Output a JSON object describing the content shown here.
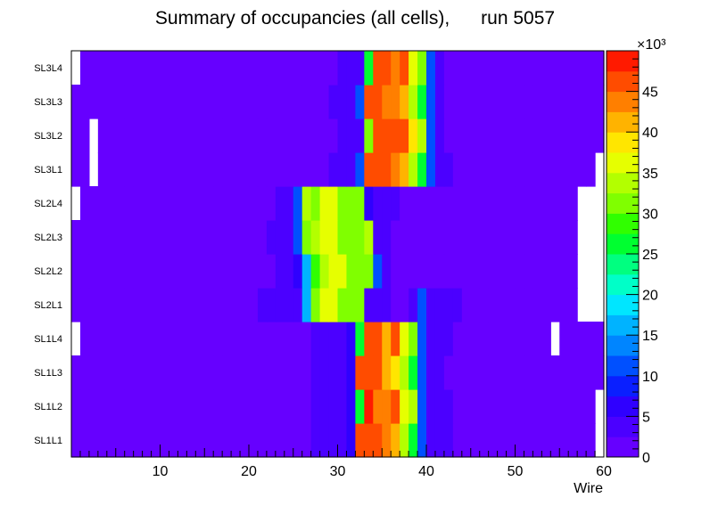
{
  "chart_data": {
    "type": "heatmap",
    "title": "Summary of occupancies (all cells),      run 5057",
    "xlabel": "Wire",
    "ylabel": "",
    "xlim": [
      0,
      60
    ],
    "x_ticks": [
      10,
      20,
      30,
      40,
      50,
      60
    ],
    "rows": [
      "SL1L1",
      "SL1L2",
      "SL1L3",
      "SL1L4",
      "SL2L1",
      "SL2L2",
      "SL2L3",
      "SL2L4",
      "SL3L1",
      "SL3L2",
      "SL3L3",
      "SL3L4"
    ],
    "colorbar": {
      "min": 0,
      "max": 50000,
      "ticks": [
        0,
        5,
        10,
        15,
        20,
        25,
        30,
        35,
        40,
        45
      ],
      "multiplier_label": "×10³",
      "palette": [
        "#6600ff",
        "#4b00ff",
        "#2f00ff",
        "#0a1fff",
        "#0050ff",
        "#0085ff",
        "#00b3ff",
        "#00e6ff",
        "#00ffc8",
        "#00ff80",
        "#00ff30",
        "#30ff00",
        "#80ff00",
        "#b3ff00",
        "#e6ff00",
        "#ffe600",
        "#ffb300",
        "#ff7f00",
        "#ff4c00",
        "#ff1a00"
      ]
    },
    "background_value": 1500,
    "empty_cells": [
      {
        "row": "SL3L4",
        "wires": [
          1
        ]
      },
      {
        "row": "SL3L2",
        "wires": [
          3
        ]
      },
      {
        "row": "SL3L1",
        "wires": [
          3,
          60
        ]
      },
      {
        "row": "SL2L4",
        "wires": [
          1,
          58,
          59,
          60
        ]
      },
      {
        "row": "SL2L3",
        "wires": [
          58,
          59,
          60
        ]
      },
      {
        "row": "SL2L2",
        "wires": [
          58,
          59,
          60
        ]
      },
      {
        "row": "SL2L1",
        "wires": [
          58,
          59,
          60
        ]
      },
      {
        "row": "SL1L4",
        "wires": [
          1,
          55
        ]
      },
      {
        "row": "SL1L2",
        "wires": [
          60
        ]
      },
      {
        "row": "SL1L1",
        "wires": [
          60
        ]
      }
    ],
    "hot_regions": [
      {
        "row": "SL1L1",
        "values": [
          [
            28,
            2500
          ],
          [
            29,
            2500
          ],
          [
            30,
            2500
          ],
          [
            31,
            4500
          ],
          [
            32,
            6000
          ],
          [
            33,
            47000
          ],
          [
            34,
            47000
          ],
          [
            35,
            47000
          ],
          [
            36,
            43000
          ],
          [
            37,
            40000
          ],
          [
            38,
            33000
          ],
          [
            39,
            27000
          ],
          [
            40,
            12000
          ],
          [
            41,
            4500
          ],
          [
            42,
            2500
          ],
          [
            43,
            2500
          ]
        ]
      },
      {
        "row": "SL1L2",
        "values": [
          [
            28,
            2500
          ],
          [
            29,
            2500
          ],
          [
            30,
            2500
          ],
          [
            31,
            2500
          ],
          [
            32,
            6000
          ],
          [
            33,
            27000
          ],
          [
            34,
            49000
          ],
          [
            35,
            44000
          ],
          [
            36,
            44000
          ],
          [
            37,
            47000
          ],
          [
            38,
            37000
          ],
          [
            39,
            33000
          ],
          [
            40,
            12000
          ],
          [
            41,
            4500
          ],
          [
            42,
            2500
          ],
          [
            43,
            2500
          ]
        ]
      },
      {
        "row": "SL1L3",
        "values": [
          [
            28,
            2500
          ],
          [
            29,
            2500
          ],
          [
            30,
            2500
          ],
          [
            31,
            2500
          ],
          [
            32,
            6000
          ],
          [
            33,
            45000
          ],
          [
            34,
            45000
          ],
          [
            35,
            45000
          ],
          [
            36,
            41000
          ],
          [
            37,
            38000
          ],
          [
            38,
            33000
          ],
          [
            39,
            27000
          ],
          [
            40,
            12000
          ],
          [
            41,
            4500
          ],
          [
            42,
            2500
          ]
        ]
      },
      {
        "row": "SL1L4",
        "values": [
          [
            28,
            2500
          ],
          [
            29,
            2500
          ],
          [
            30,
            2500
          ],
          [
            31,
            2500
          ],
          [
            32,
            6000
          ],
          [
            33,
            27000
          ],
          [
            34,
            47000
          ],
          [
            35,
            47000
          ],
          [
            36,
            41000
          ],
          [
            37,
            47000
          ],
          [
            38,
            37000
          ],
          [
            39,
            30000
          ],
          [
            40,
            12000
          ],
          [
            41,
            4500
          ],
          [
            42,
            2500
          ],
          [
            43,
            2500
          ]
        ]
      },
      {
        "row": "SL2L1",
        "values": [
          [
            22,
            2500
          ],
          [
            23,
            2500
          ],
          [
            24,
            2500
          ],
          [
            25,
            2500
          ],
          [
            26,
            4500
          ],
          [
            27,
            17000
          ],
          [
            28,
            31000
          ],
          [
            29,
            35000
          ],
          [
            30,
            37000
          ],
          [
            31,
            32000
          ],
          [
            32,
            32000
          ],
          [
            33,
            32000
          ],
          [
            34,
            4500
          ],
          [
            35,
            2500
          ],
          [
            36,
            2500
          ],
          [
            39,
            4500
          ],
          [
            40,
            10000
          ],
          [
            41,
            2500
          ],
          [
            42,
            2500
          ],
          [
            43,
            2500
          ],
          [
            44,
            2500
          ]
        ]
      },
      {
        "row": "SL2L2",
        "values": [
          [
            24,
            2500
          ],
          [
            25,
            2500
          ],
          [
            26,
            6000
          ],
          [
            27,
            16000
          ],
          [
            28,
            29000
          ],
          [
            29,
            33000
          ],
          [
            30,
            37000
          ],
          [
            31,
            37000
          ],
          [
            32,
            32000
          ],
          [
            33,
            32000
          ],
          [
            34,
            32000
          ],
          [
            35,
            12000
          ],
          [
            36,
            2500
          ]
        ]
      },
      {
        "row": "SL2L3",
        "values": [
          [
            23,
            2500
          ],
          [
            24,
            2500
          ],
          [
            25,
            2500
          ],
          [
            26,
            12000
          ],
          [
            27,
            31000
          ],
          [
            28,
            33000
          ],
          [
            29,
            37000
          ],
          [
            30,
            37000
          ],
          [
            31,
            32000
          ],
          [
            32,
            32000
          ],
          [
            33,
            32000
          ],
          [
            34,
            33000
          ],
          [
            35,
            4500
          ],
          [
            36,
            2500
          ]
        ]
      },
      {
        "row": "SL2L4",
        "values": [
          [
            24,
            2500
          ],
          [
            25,
            2500
          ],
          [
            26,
            12000
          ],
          [
            27,
            33000
          ],
          [
            28,
            31000
          ],
          [
            29,
            37000
          ],
          [
            30,
            37000
          ],
          [
            31,
            32000
          ],
          [
            32,
            32000
          ],
          [
            33,
            32000
          ],
          [
            34,
            6000
          ],
          [
            35,
            2500
          ],
          [
            36,
            2500
          ],
          [
            37,
            2500
          ]
        ]
      },
      {
        "row": "SL3L1",
        "values": [
          [
            30,
            2500
          ],
          [
            31,
            2500
          ],
          [
            32,
            2500
          ],
          [
            33,
            10000
          ],
          [
            34,
            45000
          ],
          [
            35,
            45000
          ],
          [
            36,
            45000
          ],
          [
            37,
            43000
          ],
          [
            38,
            40000
          ],
          [
            39,
            33000
          ],
          [
            40,
            27000
          ],
          [
            41,
            12000
          ],
          [
            42,
            4500
          ],
          [
            43,
            2500
          ]
        ]
      },
      {
        "row": "SL3L2",
        "values": [
          [
            31,
            2500
          ],
          [
            32,
            2500
          ],
          [
            33,
            4500
          ],
          [
            34,
            30000
          ],
          [
            35,
            47000
          ],
          [
            36,
            47000
          ],
          [
            37,
            45000
          ],
          [
            38,
            45000
          ],
          [
            39,
            38000
          ],
          [
            40,
            33000
          ],
          [
            41,
            12000
          ],
          [
            42,
            4500
          ]
        ]
      },
      {
        "row": "SL3L3",
        "values": [
          [
            30,
            2500
          ],
          [
            31,
            2500
          ],
          [
            32,
            2500
          ],
          [
            33,
            10000
          ],
          [
            34,
            47000
          ],
          [
            35,
            47000
          ],
          [
            36,
            44000
          ],
          [
            37,
            44000
          ],
          [
            38,
            40000
          ],
          [
            39,
            33000
          ],
          [
            40,
            27000
          ],
          [
            41,
            12000
          ],
          [
            42,
            4500
          ]
        ]
      },
      {
        "row": "SL3L4",
        "values": [
          [
            31,
            2500
          ],
          [
            32,
            2500
          ],
          [
            33,
            4500
          ],
          [
            34,
            27000
          ],
          [
            35,
            47000
          ],
          [
            36,
            47000
          ],
          [
            37,
            44000
          ],
          [
            38,
            45000
          ],
          [
            39,
            37000
          ],
          [
            40,
            30000
          ],
          [
            41,
            12000
          ],
          [
            42,
            4500
          ]
        ]
      }
    ]
  }
}
